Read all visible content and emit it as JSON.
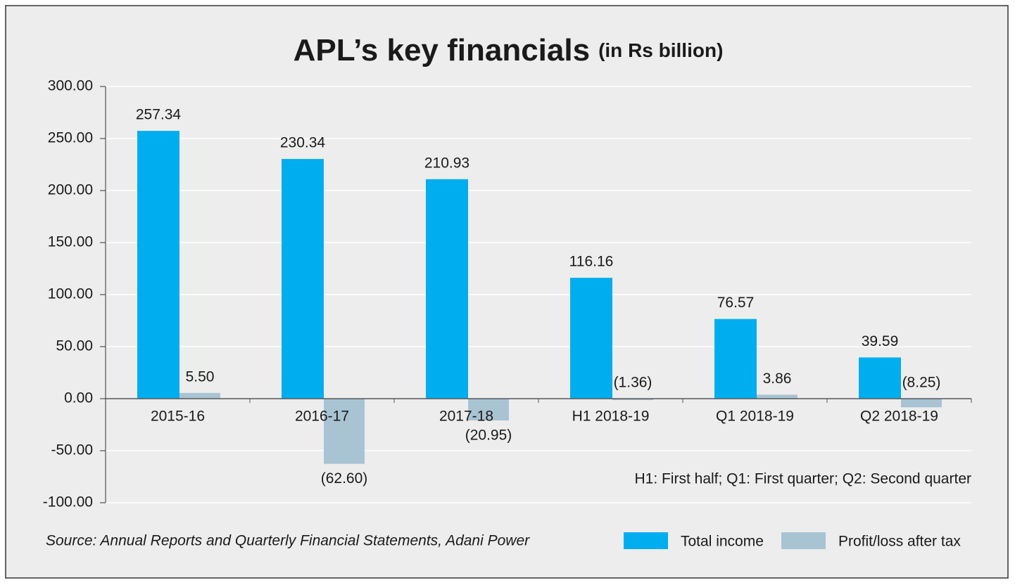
{
  "chart_data": {
    "type": "bar",
    "title": "APL’s key financials",
    "subtitle": "(in Rs billion)",
    "categories": [
      "2015-16",
      "2016-17",
      "2017-18",
      "H1 2018-19",
      "Q1 2018-19",
      "Q2 2018-19"
    ],
    "series": [
      {
        "name": "Total income",
        "color": "#00aeef",
        "values": [
          257.34,
          230.34,
          210.93,
          116.16,
          76.57,
          39.59
        ],
        "value_labels": [
          "257.34",
          "230.34",
          "210.93",
          "116.16",
          "76.57",
          "39.59"
        ]
      },
      {
        "name": "Profit/loss after tax",
        "color": "#a8c4d3",
        "values": [
          5.5,
          -62.6,
          -20.95,
          -1.36,
          3.86,
          -8.25
        ],
        "value_labels": [
          "5.50",
          "(62.60)",
          "(20.95)",
          "(1.36)",
          "3.86",
          "(8.25)"
        ]
      }
    ],
    "ylim": [
      -100,
      300
    ],
    "yticks": [
      {
        "value": -100,
        "label": "-100.00"
      },
      {
        "value": -50,
        "label": "-50.00"
      },
      {
        "value": 0,
        "label": "0.00"
      },
      {
        "value": 50,
        "label": "50.00"
      },
      {
        "value": 100,
        "label": "100.00"
      },
      {
        "value": 150,
        "label": "150.00"
      },
      {
        "value": 200,
        "label": "200.00"
      },
      {
        "value": 250,
        "label": "250.00"
      },
      {
        "value": 300,
        "label": "300.00"
      }
    ],
    "grid": true,
    "note": "H1: First half; Q1: First quarter; Q2: Second quarter",
    "source": "Source: Annual Reports and Quarterly Financial Statements, Adani Power",
    "legend": "bottom-right"
  }
}
